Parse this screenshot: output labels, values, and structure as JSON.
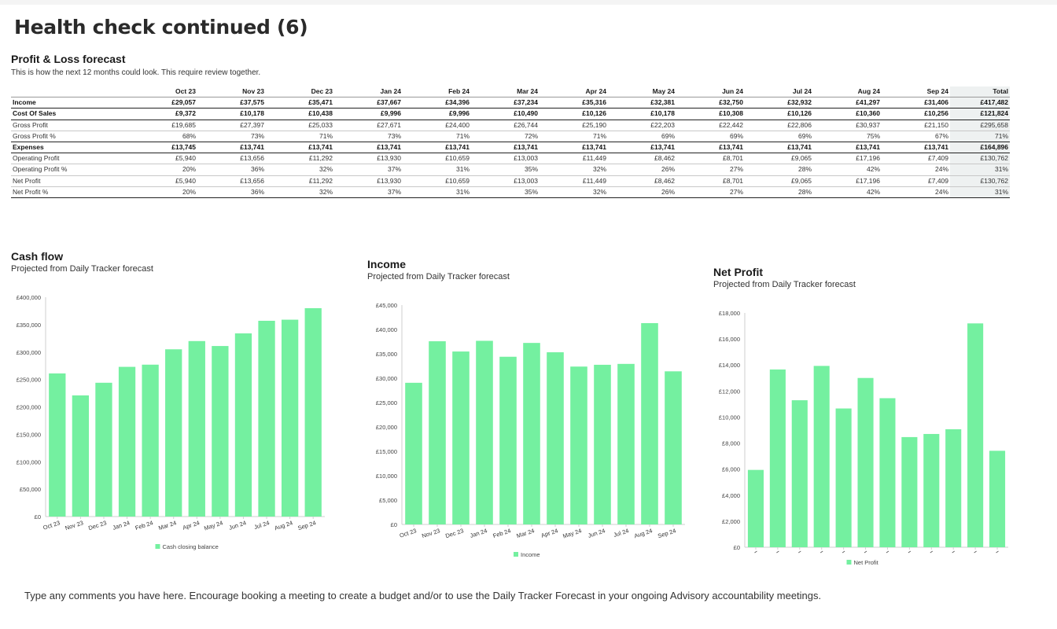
{
  "page_title": "Health check continued (6)",
  "pl": {
    "title": "Profit & Loss forecast",
    "subtitle": "This is how the next 12 months could look. This require review together.",
    "columns": [
      "Oct 23",
      "Nov 23",
      "Dec 23",
      "Jan 24",
      "Feb 24",
      "Mar 24",
      "Apr 24",
      "May 24",
      "Jun 24",
      "Jul 24",
      "Aug 24",
      "Sep 24",
      "Total"
    ],
    "rows": [
      {
        "label": "Income",
        "bold": true,
        "values": [
          "£29,057",
          "£37,575",
          "£35,471",
          "£37,667",
          "£34,396",
          "£37,234",
          "£35,316",
          "£32,381",
          "£32,750",
          "£32,932",
          "£41,297",
          "£31,406",
          "£417,482"
        ]
      },
      {
        "label": "Cost Of Sales",
        "bold": true,
        "values": [
          "£9,372",
          "£10,178",
          "£10,438",
          "£9,996",
          "£9,996",
          "£10,490",
          "£10,126",
          "£10,178",
          "£10,308",
          "£10,126",
          "£10,360",
          "£10,256",
          "£121,824"
        ]
      },
      {
        "label": "Gross Profit",
        "values": [
          "£19,685",
          "£27,397",
          "£25,033",
          "£27,671",
          "£24,400",
          "£26,744",
          "£25,190",
          "£22,203",
          "£22,442",
          "£22,806",
          "£30,937",
          "£21,150",
          "£295,658"
        ]
      },
      {
        "label": "Gross Profit %",
        "pct": true,
        "values": [
          "68%",
          "73%",
          "71%",
          "73%",
          "71%",
          "72%",
          "71%",
          "69%",
          "69%",
          "69%",
          "75%",
          "67%",
          "71%"
        ]
      },
      {
        "label": "Expenses",
        "bold": true,
        "values": [
          "£13,745",
          "£13,741",
          "£13,741",
          "£13,741",
          "£13,741",
          "£13,741",
          "£13,741",
          "£13,741",
          "£13,741",
          "£13,741",
          "£13,741",
          "£13,741",
          "£164,896"
        ]
      },
      {
        "label": "Operating Profit",
        "values": [
          "£5,940",
          "£13,656",
          "£11,292",
          "£13,930",
          "£10,659",
          "£13,003",
          "£11,449",
          "£8,462",
          "£8,701",
          "£9,065",
          "£17,196",
          "£7,409",
          "£130,762"
        ]
      },
      {
        "label": "Operating Profit %",
        "values": [
          "20%",
          "36%",
          "32%",
          "37%",
          "31%",
          "35%",
          "32%",
          "26%",
          "27%",
          "28%",
          "42%",
          "24%",
          "31%"
        ]
      },
      {
        "label": "Net Profit",
        "values": [
          "£5,940",
          "£13,656",
          "£11,292",
          "£13,930",
          "£10,659",
          "£13,003",
          "£11,449",
          "£8,462",
          "£8,701",
          "£9,065",
          "£17,196",
          "£7,409",
          "£130,762"
        ]
      },
      {
        "label": "Net Profit %",
        "pct": true,
        "values": [
          "20%",
          "36%",
          "32%",
          "37%",
          "31%",
          "35%",
          "32%",
          "26%",
          "27%",
          "28%",
          "42%",
          "24%",
          "31%"
        ]
      }
    ]
  },
  "charts": {
    "cashflow": {
      "title": "Cash flow",
      "subtitle": "Projected from Daily Tracker forecast"
    },
    "income": {
      "title": "Income",
      "subtitle": "Projected from Daily Tracker forecast"
    },
    "netprofit": {
      "title": "Net Profit",
      "subtitle": "Projected from Daily Tracker forecast"
    }
  },
  "bar_color": "#74f0a0",
  "chart_data": [
    {
      "type": "bar",
      "title": "Cash flow",
      "categories": [
        "Oct 23",
        "Nov 23",
        "Dec 23",
        "Jan 24",
        "Feb 24",
        "Mar 24",
        "Apr 24",
        "May 24",
        "Jun 24",
        "Jul 24",
        "Aug 24",
        "Sep 24"
      ],
      "series": [
        {
          "name": "Cash closing balance",
          "values": [
            261000,
            221000,
            244000,
            273000,
            277000,
            305000,
            320000,
            311000,
            334000,
            357000,
            359000,
            380000
          ]
        }
      ],
      "yticks": [
        "£0",
        "£50,000",
        "£100,000",
        "£150,000",
        "£200,000",
        "£250,000",
        "£300,000",
        "£350,000",
        "£400,000"
      ],
      "ylim": [
        0,
        400000
      ]
    },
    {
      "type": "bar",
      "title": "Income",
      "categories": [
        "Oct 23",
        "Nov 23",
        "Dec 23",
        "Jan 24",
        "Feb 24",
        "Mar 24",
        "Apr 24",
        "May 24",
        "Jun 24",
        "Jul 24",
        "Aug 24",
        "Sep 24"
      ],
      "series": [
        {
          "name": "Income",
          "values": [
            29057,
            37575,
            35471,
            37667,
            34396,
            37234,
            35316,
            32381,
            32750,
            32932,
            41297,
            31406
          ]
        }
      ],
      "yticks": [
        "£0",
        "£5,000",
        "£10,000",
        "£15,000",
        "£20,000",
        "£25,000",
        "£30,000",
        "£35,000",
        "£40,000",
        "£45,000"
      ],
      "ylim": [
        0,
        45000
      ]
    },
    {
      "type": "bar",
      "title": "Net Profit",
      "categories": [
        "",
        "",
        "",
        "",
        "",
        "",
        "",
        "",
        "",
        "",
        "",
        ""
      ],
      "series": [
        {
          "name": "Net Profit",
          "values": [
            5940,
            13656,
            11292,
            13930,
            10659,
            13003,
            11449,
            8462,
            8701,
            9065,
            17196,
            7409
          ]
        }
      ],
      "yticks": [
        "£0",
        "£2,000",
        "£4,000",
        "£6,000",
        "£8,000",
        "£10,000",
        "£12,000",
        "£14,000",
        "£16,000",
        "£18,000"
      ],
      "ylim": [
        0,
        18000
      ]
    }
  ],
  "footer_note": "Type any comments you have here. Encourage booking a meeting to create a budget and/or to use the Daily Tracker Forecast in your ongoing Advisory accountability meetings."
}
